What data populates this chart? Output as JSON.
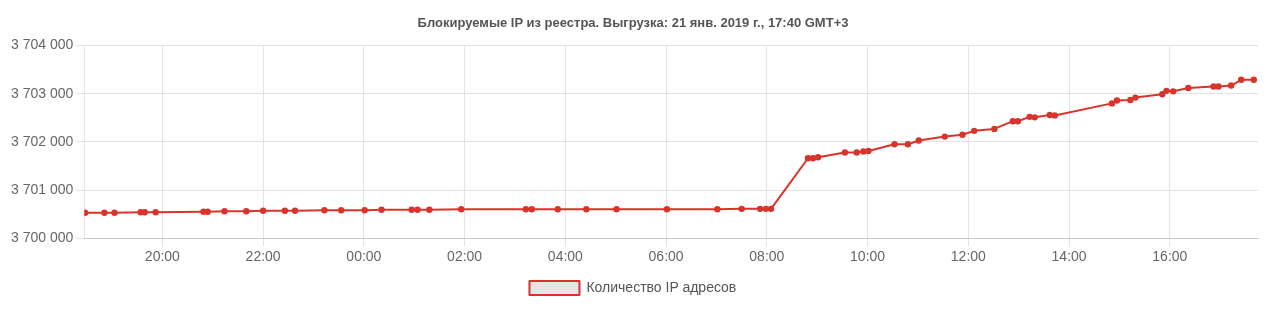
{
  "chart_data": {
    "type": "line",
    "title": "Блокируемые IP из реестра. Выгрузка: 21 янв. 2019 г., 17:40 GMT+3",
    "x": [
      "2019-01-20T18:28",
      "2019-01-20T18:51",
      "2019-01-20T19:03",
      "2019-01-20T19:34",
      "2019-01-20T19:39",
      "2019-01-20T19:52",
      "2019-01-20T20:49",
      "2019-01-20T20:54",
      "2019-01-20T21:14",
      "2019-01-20T21:40",
      "2019-01-20T22:00",
      "2019-01-20T22:26",
      "2019-01-20T22:38",
      "2019-01-20T23:13",
      "2019-01-20T23:33",
      "2019-01-21T00:01",
      "2019-01-21T00:21",
      "2019-01-21T00:57",
      "2019-01-21T01:04",
      "2019-01-21T01:18",
      "2019-01-21T01:56",
      "2019-01-21T03:13",
      "2019-01-21T03:20",
      "2019-01-21T03:51",
      "2019-01-21T04:25",
      "2019-01-21T05:01",
      "2019-01-21T06:01",
      "2019-01-21T07:01",
      "2019-01-21T07:30",
      "2019-01-21T07:52",
      "2019-01-21T07:59",
      "2019-01-21T08:05",
      "2019-01-21T08:49",
      "2019-01-21T08:55",
      "2019-01-21T09:01",
      "2019-01-21T09:33",
      "2019-01-21T09:47",
      "2019-01-21T09:55",
      "2019-01-21T10:01",
      "2019-01-21T10:32",
      "2019-01-21T10:48",
      "2019-01-21T11:01",
      "2019-01-21T11:32",
      "2019-01-21T11:53",
      "2019-01-21T12:07",
      "2019-01-21T12:31",
      "2019-01-21T12:53",
      "2019-01-21T12:59",
      "2019-01-21T13:13",
      "2019-01-21T13:19",
      "2019-01-21T13:37",
      "2019-01-21T13:43",
      "2019-01-21T14:51",
      "2019-01-21T14:57",
      "2019-01-21T15:13",
      "2019-01-21T15:19",
      "2019-01-21T15:51",
      "2019-01-21T15:56",
      "2019-01-21T16:04",
      "2019-01-21T16:22",
      "2019-01-21T16:52",
      "2019-01-21T16:58",
      "2019-01-21T17:13",
      "2019-01-21T17:25",
      "2019-01-21T17:40"
    ],
    "series": [
      {
        "name": "Количество IP адресов",
        "color": "#d9342b",
        "values": [
          3700530,
          3700530,
          3700530,
          3700540,
          3700540,
          3700540,
          3700550,
          3700550,
          3700560,
          3700560,
          3700570,
          3700570,
          3700570,
          3700580,
          3700580,
          3700580,
          3700590,
          3700590,
          3700590,
          3700590,
          3700600,
          3700600,
          3700600,
          3700600,
          3700600,
          3700600,
          3700600,
          3700600,
          3700610,
          3700610,
          3700610,
          3700610,
          3701660,
          3701660,
          3701680,
          3701780,
          3701780,
          3701800,
          3701810,
          3701950,
          3701950,
          3702030,
          3702110,
          3702150,
          3702230,
          3702270,
          3702430,
          3702430,
          3702520,
          3702510,
          3702560,
          3702550,
          3702800,
          3702860,
          3702870,
          3702920,
          3702990,
          3703060,
          3703050,
          3703120,
          3703150,
          3703150,
          3703170,
          3703290,
          3703290
        ]
      }
    ],
    "xlim": [
      "2019-01-20T18:27",
      "2019-01-21T17:45"
    ],
    "xticks": [
      {
        "value": "2019-01-20T20:00",
        "label": "20:00"
      },
      {
        "value": "2019-01-20T22:00",
        "label": "22:00"
      },
      {
        "value": "2019-01-21T00:00",
        "label": "00:00"
      },
      {
        "value": "2019-01-21T02:00",
        "label": "02:00"
      },
      {
        "value": "2019-01-21T04:00",
        "label": "04:00"
      },
      {
        "value": "2019-01-21T06:00",
        "label": "06:00"
      },
      {
        "value": "2019-01-21T08:00",
        "label": "08:00"
      },
      {
        "value": "2019-01-21T10:00",
        "label": "10:00"
      },
      {
        "value": "2019-01-21T12:00",
        "label": "12:00"
      },
      {
        "value": "2019-01-21T14:00",
        "label": "14:00"
      },
      {
        "value": "2019-01-21T16:00",
        "label": "16:00"
      }
    ],
    "ylim": [
      3700000,
      3704000
    ],
    "yticks": [
      {
        "value": 3700000,
        "label": "3 700 000"
      },
      {
        "value": 3701000,
        "label": "3 701 000"
      },
      {
        "value": 3702000,
        "label": "3 702 000"
      },
      {
        "value": 3703000,
        "label": "3 703 000"
      },
      {
        "value": 3704000,
        "label": "3 704 000"
      }
    ],
    "grid": true,
    "legend": "bottom",
    "marker": "circle",
    "line_style": "solid"
  }
}
